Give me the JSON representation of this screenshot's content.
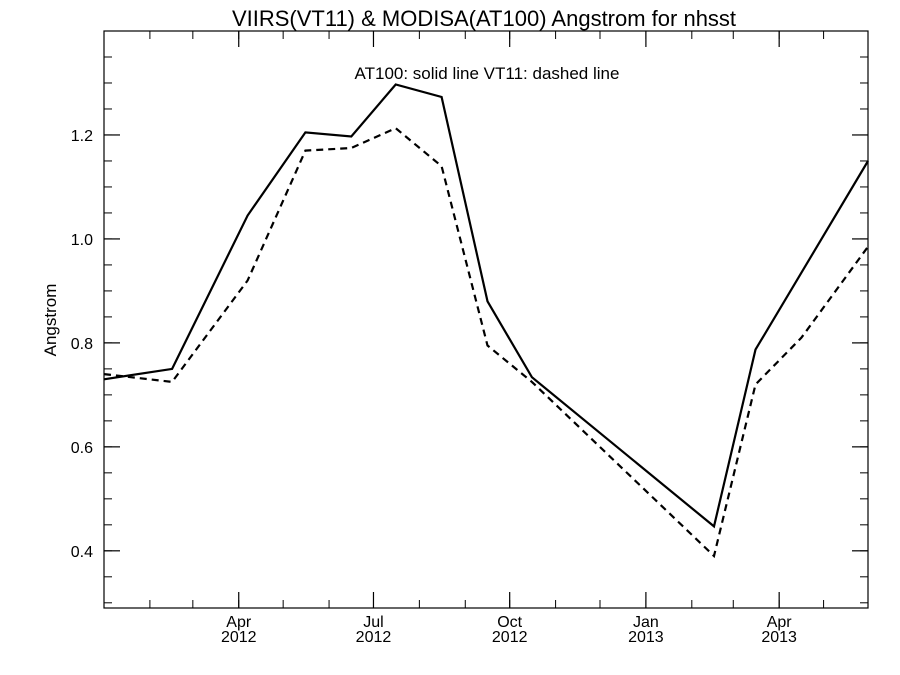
{
  "chart_data": {
    "type": "line",
    "title": "VIIRS(VT11) & MODISA(AT100)  Angstrom for nhsst",
    "annotation": "AT100: solid line   VT11: dashed line",
    "ylabel": "Angstrom",
    "xlabel": "",
    "xlim": [
      "2012-01-01",
      "2013-05-31"
    ],
    "ylim": [
      0.29,
      1.4
    ],
    "y_ticks": [
      "0.4",
      "0.6",
      "0.8",
      "1.0",
      "1.2"
    ],
    "x_ticks": [
      {
        "date": "2012-04-01",
        "label_top": "Apr",
        "label_bottom": "2012"
      },
      {
        "date": "2012-07-01",
        "label_top": "Jul",
        "label_bottom": "2012"
      },
      {
        "date": "2012-10-01",
        "label_top": "Oct",
        "label_bottom": "2012"
      },
      {
        "date": "2013-01-01",
        "label_top": "Jan",
        "label_bottom": "2013"
      },
      {
        "date": "2013-04-01",
        "label_top": "Apr",
        "label_bottom": "2013"
      }
    ],
    "series": [
      {
        "name": "AT100",
        "style": "solid",
        "x": [
          "2012-01-01",
          "2012-02-16",
          "2012-04-07",
          "2012-05-16",
          "2012-06-16",
          "2012-07-16",
          "2012-08-16",
          "2012-09-16",
          "2012-10-16",
          "2013-02-16",
          "2013-03-16",
          "2013-04-16",
          "2013-05-31"
        ],
        "y": [
          0.73,
          0.75,
          1.045,
          1.205,
          1.197,
          1.297,
          1.273,
          0.88,
          0.734,
          0.447,
          0.787,
          0.935,
          1.15
        ]
      },
      {
        "name": "VT11",
        "style": "dashed",
        "x": [
          "2012-01-01",
          "2012-02-16",
          "2012-04-07",
          "2012-05-16",
          "2012-06-16",
          "2012-07-16",
          "2012-08-16",
          "2012-09-16",
          "2012-10-16",
          "2013-02-16",
          "2013-03-16",
          "2013-04-16",
          "2013-05-31"
        ],
        "y": [
          0.74,
          0.725,
          0.92,
          1.17,
          1.175,
          1.213,
          1.14,
          0.795,
          0.725,
          0.39,
          0.72,
          0.81,
          0.985
        ]
      }
    ]
  }
}
